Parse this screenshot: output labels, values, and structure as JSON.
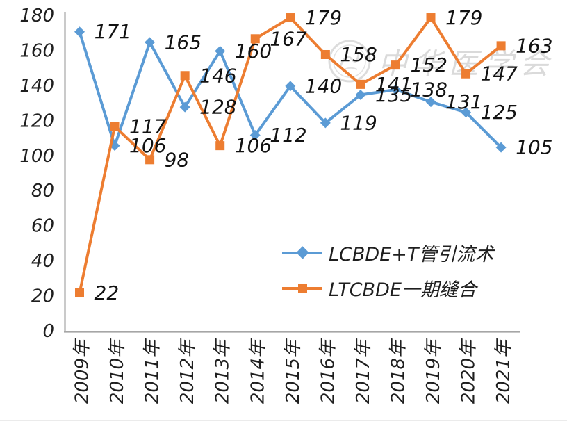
{
  "chart_data": {
    "type": "line",
    "categories": [
      "2009年",
      "2010年",
      "2011年",
      "2012年",
      "2013年",
      "2014年",
      "2015年",
      "2016年",
      "2017年",
      "2018年",
      "2019年",
      "2020年",
      "2021年"
    ],
    "series": [
      {
        "name": "LCBDE+T管引流术",
        "marker": "diamond",
        "color": "#5B9BD5",
        "values": [
          171,
          106,
          165,
          128,
          160,
          112,
          140,
          119,
          135,
          138,
          131,
          125,
          105
        ]
      },
      {
        "name": "LTCBDE一期缝合",
        "marker": "square",
        "color": "#ED7D31",
        "values": [
          22,
          117,
          98,
          146,
          106,
          167,
          179,
          158,
          141,
          152,
          179,
          147,
          163
        ]
      }
    ],
    "title": "",
    "xlabel": "",
    "ylabel": "",
    "ylim": [
      0,
      180
    ],
    "yticks": [
      0,
      20,
      40,
      60,
      80,
      100,
      120,
      140,
      160,
      180
    ],
    "grid": false,
    "data_labels": true,
    "legend_position": "inside-lower-right",
    "axis_color": "#A6A6A6",
    "text_color": "#1f1f1f"
  },
  "watermark": {
    "text": "中华医学会"
  }
}
